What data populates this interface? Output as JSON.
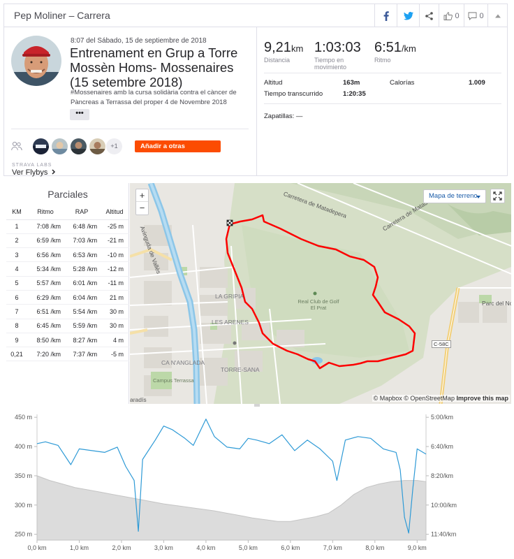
{
  "header": {
    "title": "Pep Moliner – Carrera",
    "kudos_count": "0",
    "comments_count": "0"
  },
  "activity": {
    "date": "8:07 del Sábado, 15 de septiembre de 2018",
    "title": "Entrenament en Grup a Torre Mossèn Homs- Mossenaires (15 setembre 2018)",
    "description": "#Mossenaires amb la cursa solidària contra el càncer de Pàncreas a Terrassa del proper 4 de Novembre 2018",
    "more_label": "•••",
    "extra_athletes": "+1",
    "add_others_label": "Añadir a otras personas",
    "labs_label": "STRAVA LABS",
    "flybys_label": "Ver Flybys"
  },
  "stats": {
    "distance_value": "9,21",
    "distance_unit": "km",
    "distance_label": "Distancia",
    "moving_time_value": "1:03:03",
    "moving_time_label": "Tiempo en movimiento",
    "pace_value": "6:51",
    "pace_unit": "/km",
    "pace_label": "Ritmo",
    "elevation_label": "Altitud",
    "elevation_value": "163m",
    "calories_label": "Calorías",
    "calories_value": "1.009",
    "elapsed_label": "Tiempo transcurrido",
    "elapsed_value": "1:20:35",
    "shoes_label": "Zapatillas: —"
  },
  "splits": {
    "title": "Parciales",
    "headers": [
      "KM",
      "Ritmo",
      "RAP",
      "Altitud"
    ],
    "rows": [
      {
        "km": "1",
        "pace": "7:08 /km",
        "gap": "6:48 /km",
        "elev": "-25 m"
      },
      {
        "km": "2",
        "pace": "6:59 /km",
        "gap": "7:03 /km",
        "elev": "-21 m"
      },
      {
        "km": "3",
        "pace": "6:56 /km",
        "gap": "6:53 /km",
        "elev": "-10 m"
      },
      {
        "km": "4",
        "pace": "5:34 /km",
        "gap": "5:28 /km",
        "elev": "-12 m"
      },
      {
        "km": "5",
        "pace": "5:57 /km",
        "gap": "6:01 /km",
        "elev": "-11 m"
      },
      {
        "km": "6",
        "pace": "6:29 /km",
        "gap": "6:04 /km",
        "elev": "21 m"
      },
      {
        "km": "7",
        "pace": "6:51 /km",
        "gap": "5:54 /km",
        "elev": "30 m"
      },
      {
        "km": "8",
        "pace": "6:45 /km",
        "gap": "5:59 /km",
        "elev": "30 m"
      },
      {
        "km": "9",
        "pace": "8:50 /km",
        "gap": "8:27 /km",
        "elev": "4 m"
      },
      {
        "km": "0,21",
        "pace": "7:20 /km",
        "gap": "7:37 /km",
        "elev": "-5 m"
      }
    ]
  },
  "map": {
    "zoom_in": "+",
    "zoom_out": "−",
    "map_type_label": "Mapa de terreno",
    "attribution": "© Mapbox © OpenStreetMap",
    "improve_label": "Improve this map",
    "labels": {
      "road1": "Carretera de Matadepera",
      "road2": "Carretera de Matadepera",
      "avenue": "Avinguda de Vallès",
      "golf": "Real Club de Golf El Prat",
      "gripia": "LA GRIPIA",
      "arenes": "LES ARENES",
      "anglada": "CA N'ANGLADA",
      "torre": "TORRE-SANA",
      "campus": "Campus Terrassa",
      "parc": "Parc del No",
      "c58c": "C-58C",
      "paradis": "aradís"
    }
  },
  "chart_data": {
    "type": "area",
    "xlabel": "",
    "ylabel": "",
    "x_ticks": [
      "0,0 km",
      "1,0 km",
      "2,0 km",
      "3,0 km",
      "4,0 km",
      "5,0 km",
      "6,0 km",
      "7,0 km",
      "8,0 km",
      "9,0 km"
    ],
    "xlim": [
      0,
      9.21
    ],
    "y_left_ticks": [
      "450 m",
      "400 m",
      "350 m",
      "300 m",
      "250 m"
    ],
    "ylim": [
      240,
      455
    ],
    "y_right_ticks": [
      "5:00/km",
      "6:40/km",
      "8:20/km",
      "10:00/km",
      "11:40/km"
    ],
    "series": [
      {
        "type": "area",
        "x": [
          0,
          0.3,
          0.6,
          0.9,
          1.2,
          1.5,
          1.8,
          2.1,
          2.4,
          2.7,
          3.0,
          3.3,
          3.6,
          3.9,
          4.2,
          4.5,
          4.8,
          5.1,
          5.4,
          5.7,
          6.0,
          6.3,
          6.6,
          6.9,
          7.2,
          7.5,
          7.8,
          8.1,
          8.4,
          8.7,
          9.0,
          9.21
        ],
        "values": [
          350,
          342,
          336,
          330,
          326,
          322,
          318,
          314,
          310,
          306,
          302,
          299,
          296,
          293,
          290,
          286,
          282,
          278,
          275,
          272,
          272,
          276,
          280,
          286,
          300,
          318,
          330,
          336,
          340,
          342,
          342,
          340
        ]
      },
      {
        "type": "line",
        "x": [
          0,
          0.2,
          0.5,
          0.8,
          1.0,
          1.3,
          1.6,
          1.9,
          2.1,
          2.3,
          2.4,
          2.5,
          2.8,
          3.0,
          3.2,
          3.5,
          3.7,
          4.0,
          4.2,
          4.5,
          4.8,
          5.0,
          5.2,
          5.5,
          5.8,
          6.1,
          6.4,
          6.7,
          7.0,
          7.1,
          7.3,
          7.6,
          7.9,
          8.2,
          8.5,
          8.6,
          8.7,
          8.8,
          8.9,
          9.0,
          9.21
        ],
        "values": [
          6.5,
          6.4,
          6.6,
          7.7,
          6.8,
          6.9,
          7.0,
          6.7,
          7.8,
          8.6,
          11.5,
          7.4,
          6.3,
          5.5,
          5.7,
          6.2,
          6.6,
          5.1,
          6.1,
          6.7,
          6.8,
          6.2,
          6.3,
          6.5,
          6.0,
          6.9,
          6.3,
          6.8,
          7.5,
          8.6,
          6.3,
          6.1,
          6.2,
          6.8,
          7.0,
          8.0,
          10.7,
          11.6,
          9.0,
          6.8,
          7.1
        ]
      }
    ]
  }
}
